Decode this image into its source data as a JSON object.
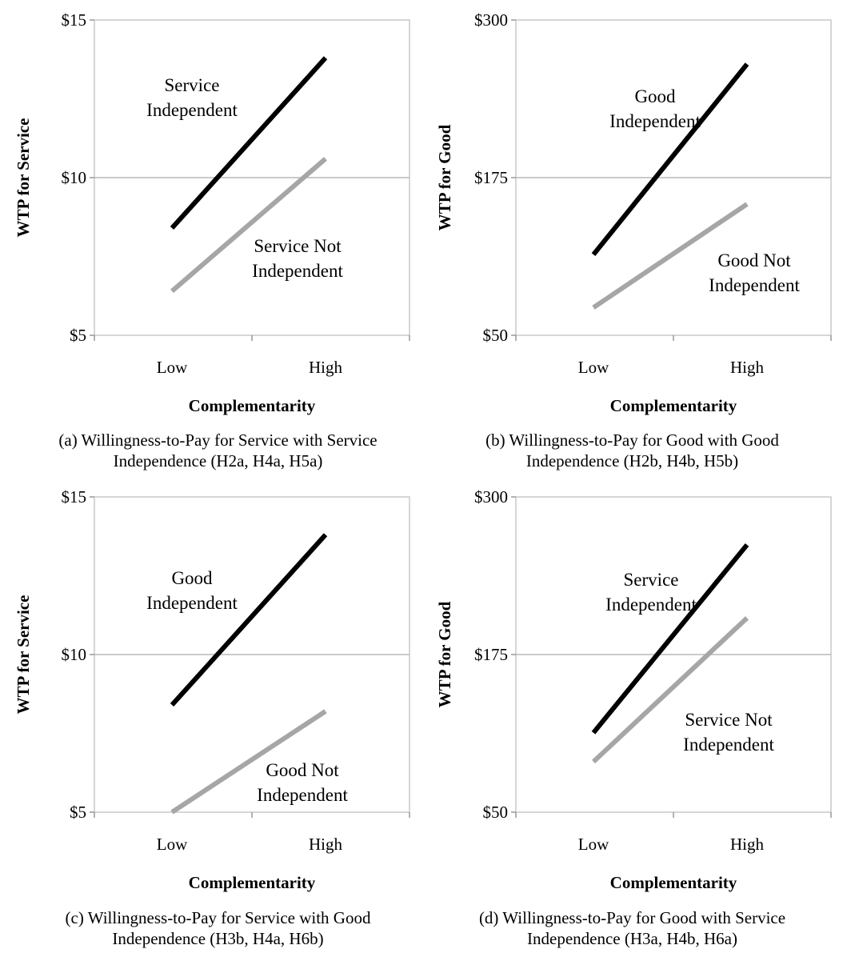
{
  "chart_data": [
    {
      "type": "line",
      "categories": [
        "Low",
        "High"
      ],
      "xlabel": "Complementarity",
      "ylabel": "WTP for Service",
      "ylim": [
        5,
        15
      ],
      "yticks": [
        "$5",
        "$10",
        "$15"
      ],
      "yticks_values": [
        5,
        10,
        15
      ],
      "grid": true,
      "series": [
        {
          "name": "Service Independent",
          "name_lines": [
            "Service",
            "Independent"
          ],
          "values": [
            8.4,
            13.8
          ],
          "color": "#000000"
        },
        {
          "name": "Service Not Independent",
          "name_lines": [
            "Service Not",
            "Independent"
          ],
          "values": [
            6.4,
            10.6
          ],
          "color": "#a6a6a6"
        }
      ],
      "caption_lines": [
        "(a) Willingness-to-Pay for Service with Service",
        "Independence (H2a, H4a, H5a)"
      ]
    },
    {
      "type": "line",
      "categories": [
        "Low",
        "High"
      ],
      "xlabel": "Complementarity",
      "ylabel": "WTP for Good",
      "ylim": [
        50,
        300
      ],
      "yticks": [
        "$50",
        "$175",
        "$300"
      ],
      "yticks_values": [
        50,
        175,
        300
      ],
      "grid": true,
      "series": [
        {
          "name": "Good Independent",
          "name_lines": [
            "Good",
            "Independent"
          ],
          "values": [
            114,
            265
          ],
          "color": "#000000"
        },
        {
          "name": "Good Not Independent",
          "name_lines": [
            "Good Not",
            "Independent"
          ],
          "values": [
            72,
            154
          ],
          "color": "#a6a6a6"
        }
      ],
      "caption_lines": [
        "(b) Willingness-to-Pay for Good with Good",
        "Independence (H2b, H4b, H5b)"
      ]
    },
    {
      "type": "line",
      "categories": [
        "Low",
        "High"
      ],
      "xlabel": "Complementarity",
      "ylabel": "WTP for Service",
      "ylim": [
        5,
        15
      ],
      "yticks": [
        "$5",
        "$10",
        "$15"
      ],
      "yticks_values": [
        5,
        10,
        15
      ],
      "grid": true,
      "series": [
        {
          "name": "Good Independent",
          "name_lines": [
            "Good",
            "Independent"
          ],
          "values": [
            8.4,
            13.8
          ],
          "color": "#000000"
        },
        {
          "name": "Good Not Independent",
          "name_lines": [
            "Good Not",
            "Independent"
          ],
          "values": [
            5.0,
            8.2
          ],
          "color": "#a6a6a6"
        }
      ],
      "caption_lines": [
        "(c) Willingness-to-Pay for Service with Good",
        "Independence (H3b, H4a, H6b)"
      ]
    },
    {
      "type": "line",
      "categories": [
        "Low",
        "High"
      ],
      "xlabel": "Complementarity",
      "ylabel": "WTP for Good",
      "ylim": [
        50,
        300
      ],
      "yticks": [
        "$50",
        "$175",
        "$300"
      ],
      "yticks_values": [
        50,
        175,
        300
      ],
      "grid": true,
      "series": [
        {
          "name": "Service Independent",
          "name_lines": [
            "Service",
            "Independent"
          ],
          "values": [
            113,
            262
          ],
          "color": "#000000"
        },
        {
          "name": "Service Not Independent",
          "name_lines": [
            "Service Not",
            "Independent"
          ],
          "values": [
            90,
            204
          ],
          "color": "#a6a6a6"
        }
      ],
      "caption_lines": [
        "(d) Willingness-to-Pay for Good with Service",
        "Independence (H3a, H4b, H6a)"
      ]
    }
  ]
}
